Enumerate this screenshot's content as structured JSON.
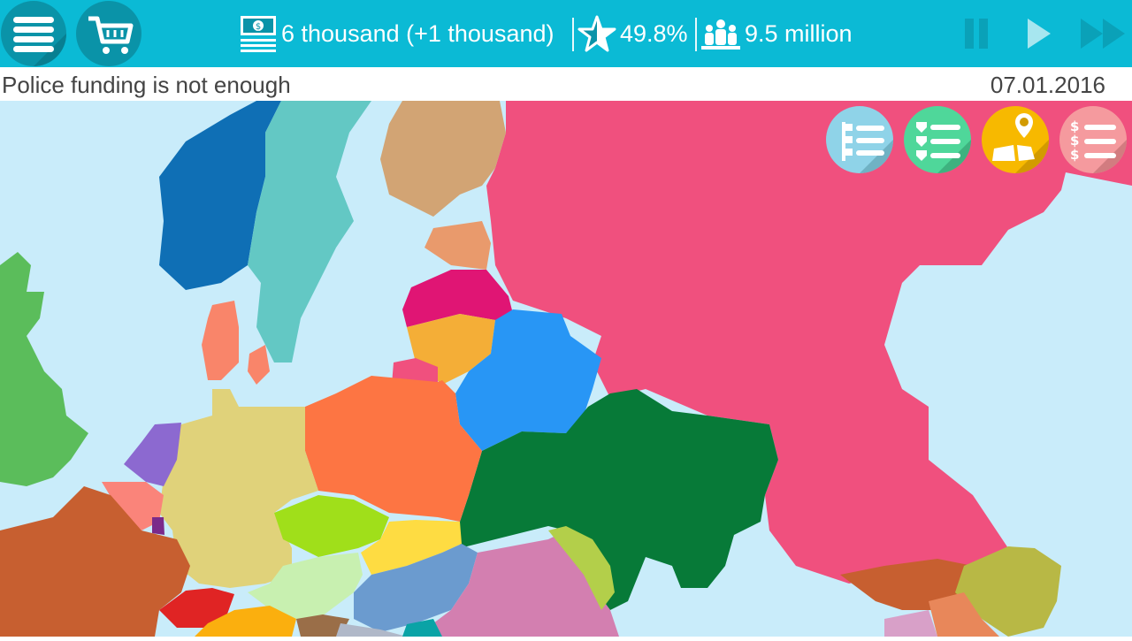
{
  "topbar": {
    "menu_icon": "hamburger-menu-icon",
    "shop_icon": "shopping-cart-icon",
    "money": "6 thousand (+1 thousand)",
    "money_icon": "money-banknote-icon",
    "rating": "49.8%",
    "rating_icon": "star-icon",
    "population": "9.5 million",
    "population_icon": "people-group-icon",
    "controls": [
      "pause",
      "play",
      "fast-forward"
    ]
  },
  "status": {
    "message": "Police funding is not enough",
    "date": "07.01.2016"
  },
  "map_buttons": [
    {
      "icon": "flag-list-icon",
      "color": "#8fd3e8"
    },
    {
      "icon": "shield-list-icon",
      "color": "#4fd79a"
    },
    {
      "icon": "map-pin-icon",
      "color": "#f7b900"
    },
    {
      "icon": "dollar-list-icon",
      "color": "#f59a9e"
    }
  ],
  "colors": {
    "topbar": "#0bbad5",
    "sea": "#c9ecfa",
    "player_country": "#f0507e"
  }
}
